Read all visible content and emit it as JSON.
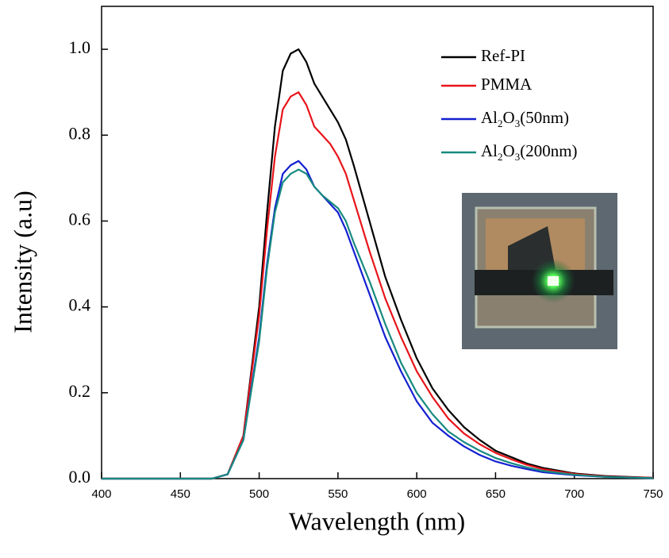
{
  "chart_data": {
    "type": "line",
    "x_label": "Wavelength (nm)",
    "y_label": "Intensity (a.u)",
    "x": [
      400,
      470,
      480,
      490,
      500,
      505,
      510,
      515,
      520,
      525,
      530,
      535,
      540,
      545,
      550,
      555,
      560,
      570,
      580,
      590,
      600,
      610,
      620,
      630,
      640,
      650,
      660,
      670,
      680,
      700,
      720,
      750
    ],
    "series": [
      {
        "name": "Ref-PI",
        "color": "#000000",
        "values": [
          0,
          0,
          0.01,
          0.1,
          0.4,
          0.62,
          0.82,
          0.95,
          0.99,
          1.0,
          0.97,
          0.92,
          0.89,
          0.86,
          0.83,
          0.79,
          0.73,
          0.6,
          0.47,
          0.37,
          0.28,
          0.21,
          0.16,
          0.12,
          0.09,
          0.065,
          0.05,
          0.035,
          0.025,
          0.012,
          0.006,
          0.002
        ]
      },
      {
        "name": "PMMA",
        "color": "#e8141a",
        "values": [
          0,
          0,
          0.01,
          0.1,
          0.38,
          0.58,
          0.75,
          0.86,
          0.89,
          0.9,
          0.87,
          0.82,
          0.8,
          0.78,
          0.75,
          0.71,
          0.65,
          0.53,
          0.42,
          0.33,
          0.25,
          0.19,
          0.14,
          0.105,
          0.08,
          0.06,
          0.045,
          0.032,
          0.022,
          0.011,
          0.005,
          0.002
        ]
      },
      {
        "name": "Al2O3(50nm)",
        "color": "#1420d0",
        "values": [
          0,
          0,
          0.01,
          0.09,
          0.33,
          0.5,
          0.63,
          0.71,
          0.73,
          0.74,
          0.72,
          0.68,
          0.66,
          0.64,
          0.62,
          0.58,
          0.53,
          0.43,
          0.33,
          0.25,
          0.18,
          0.13,
          0.1,
          0.075,
          0.055,
          0.04,
          0.03,
          0.022,
          0.015,
          0.008,
          0.004,
          0.001
        ]
      },
      {
        "name": "Al2O3(200nm)",
        "color": "#178a80",
        "values": [
          0,
          0,
          0.01,
          0.09,
          0.32,
          0.49,
          0.62,
          0.69,
          0.71,
          0.72,
          0.71,
          0.68,
          0.66,
          0.645,
          0.63,
          0.6,
          0.55,
          0.46,
          0.36,
          0.27,
          0.2,
          0.15,
          0.11,
          0.085,
          0.065,
          0.048,
          0.036,
          0.026,
          0.018,
          0.009,
          0.004,
          0.001
        ]
      }
    ],
    "xlim": [
      400,
      750
    ],
    "xticks": [
      400,
      450,
      500,
      550,
      600,
      650,
      700,
      750
    ],
    "ylim": [
      0,
      1.1
    ],
    "yticks": [
      {
        "value": 0,
        "label": "0.0"
      },
      0.2,
      0.4,
      0.6,
      0.8,
      {
        "value": 1,
        "label": "1.0"
      }
    ],
    "legend": "upper right",
    "grid": false
  }
}
